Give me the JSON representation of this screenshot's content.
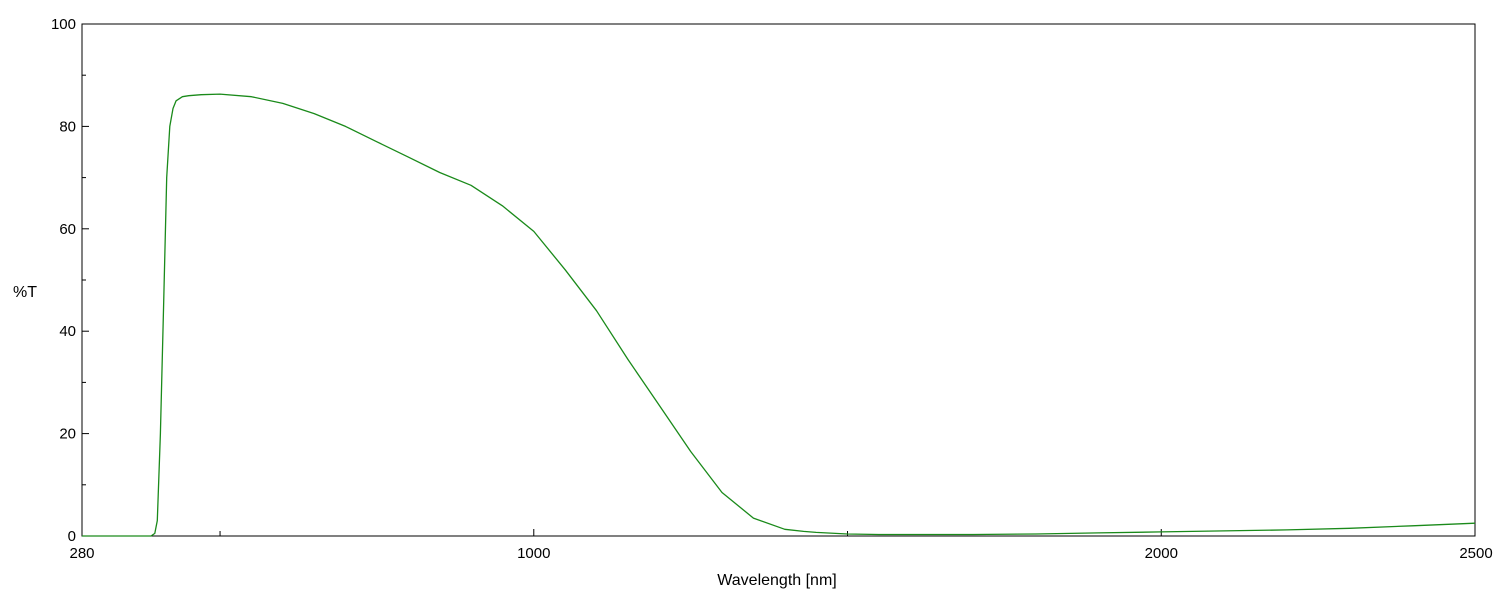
{
  "chart_data": {
    "type": "line",
    "title": "",
    "xlabel": "Wavelength [nm]",
    "ylabel": "%T",
    "xlim": [
      280,
      2500
    ],
    "ylim": [
      0,
      100
    ],
    "x_ticks": [
      280,
      1000,
      2000,
      2500
    ],
    "y_ticks": [
      0,
      20,
      40,
      60,
      80,
      100
    ],
    "x_minor_ticks": [
      500,
      1500
    ],
    "y_minor_ticks": [
      10,
      30,
      50,
      70,
      90
    ],
    "grid": false,
    "line_color": "#1a8a1a",
    "series": [
      {
        "x": [
          280,
          330,
          390,
          396,
          400,
          405,
          410,
          415,
          420,
          425,
          430,
          440,
          450,
          470,
          500,
          550,
          600,
          650,
          700,
          750,
          800,
          850,
          900,
          950,
          1000,
          1050,
          1100,
          1150,
          1200,
          1250,
          1300,
          1350,
          1400,
          1430,
          1450,
          1500,
          1550,
          1600,
          1700,
          1800,
          1900,
          2000,
          2100,
          2200,
          2300,
          2400,
          2500
        ],
        "y": [
          0,
          0,
          0,
          0.5,
          3,
          20,
          45,
          70,
          80,
          83.5,
          85,
          85.8,
          86,
          86.2,
          86.3,
          85.8,
          84.5,
          82.5,
          80,
          77,
          74,
          71,
          68.5,
          64.5,
          59.5,
          52,
          44,
          34.5,
          25.5,
          16.5,
          8.5,
          3.5,
          1.3,
          0.9,
          0.7,
          0.4,
          0.3,
          0.3,
          0.3,
          0.4,
          0.6,
          0.8,
          1.0,
          1.2,
          1.5,
          2.0,
          2.5
        ]
      }
    ]
  }
}
